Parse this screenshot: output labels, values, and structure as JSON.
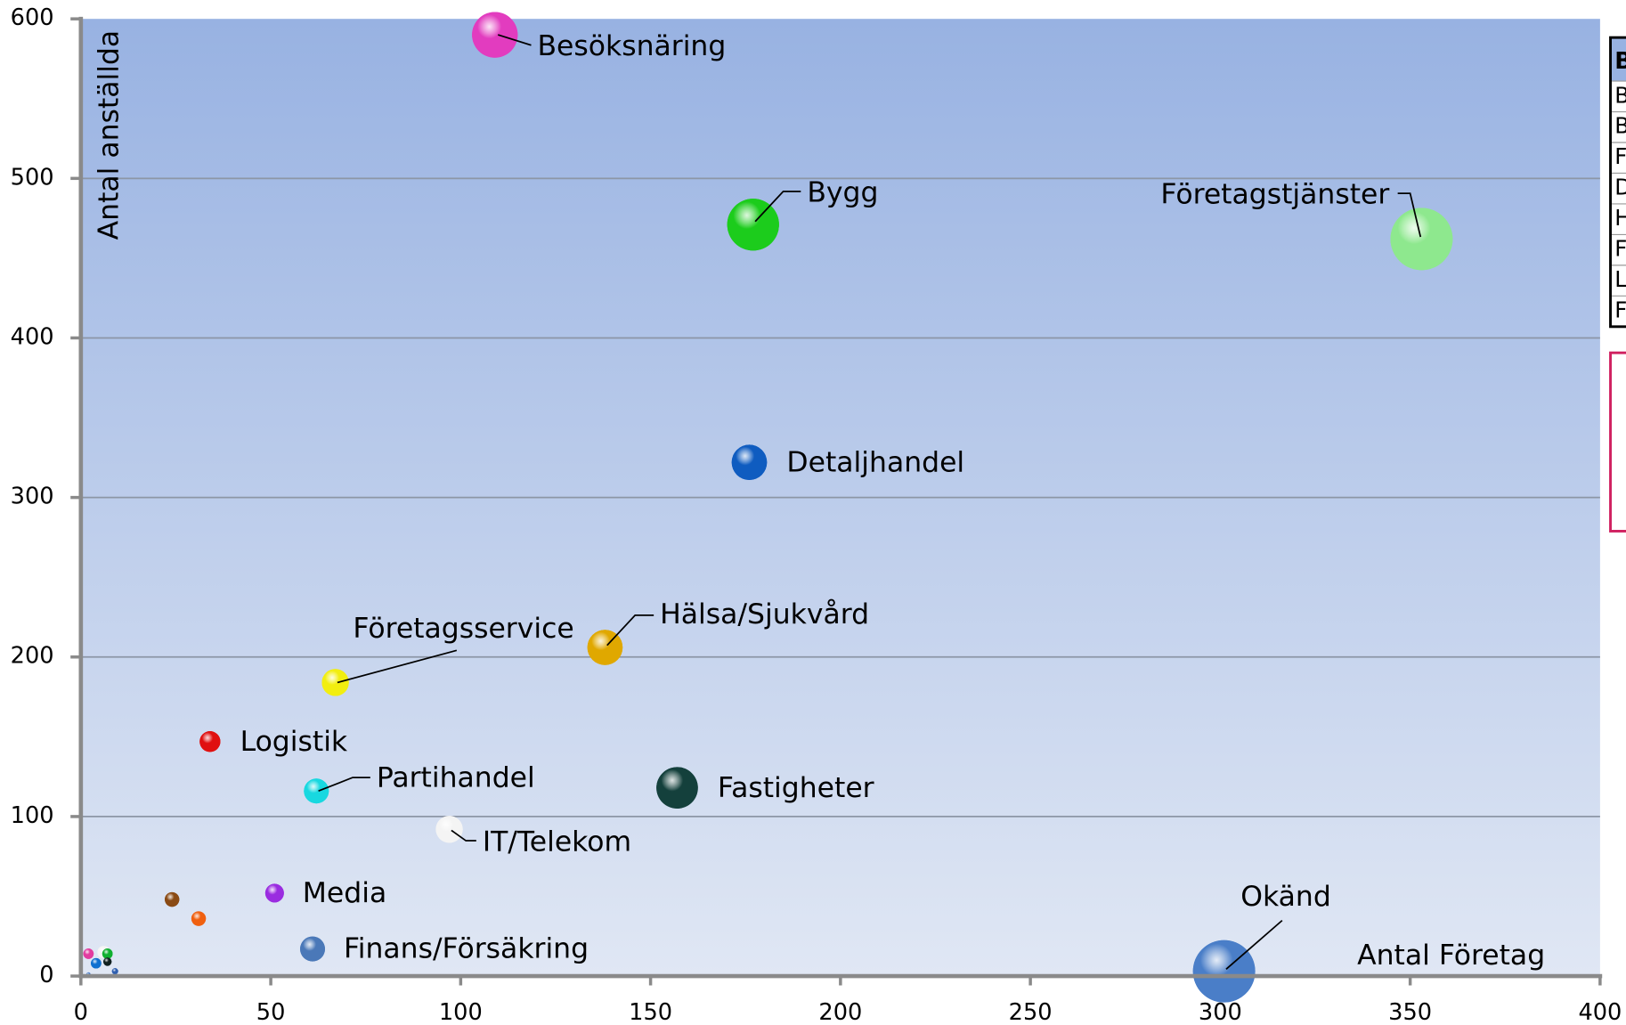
{
  "chart_data": {
    "type": "bubble",
    "x_label": "Antal Företag",
    "y_label": "Antal anställda",
    "xlim": [
      0,
      400
    ],
    "xticks": [
      0,
      50,
      100,
      150,
      200,
      250,
      300,
      350,
      400
    ],
    "ylim": [
      0,
      600
    ],
    "yticks": [
      0,
      100,
      200,
      300,
      400,
      500,
      600
    ],
    "grid": true,
    "points": [
      {
        "name": "Besöksnäring",
        "x": 109,
        "y": 590,
        "size": 484,
        "color": "#e23cbf"
      },
      {
        "name": "Bygg",
        "x": 177,
        "y": 471,
        "size": 625,
        "color": "#1ccc1c"
      },
      {
        "name": "Företagstjänster",
        "x": 353,
        "y": 462,
        "size": 900,
        "color": "#8ee88e"
      },
      {
        "name": "Detaljhandel",
        "x": 176,
        "y": 322,
        "size": 289,
        "color": "#0f5cc0"
      },
      {
        "name": "Hälsa/Sjukvård",
        "x": 138,
        "y": 206,
        "size": 289,
        "color": "#e0a800"
      },
      {
        "name": "Företagsservice",
        "x": 67,
        "y": 184,
        "size": 169,
        "color": "#f2ee10"
      },
      {
        "name": "Logistik",
        "x": 34,
        "y": 147,
        "size": 100,
        "color": "#e01010"
      },
      {
        "name": "Partihandel",
        "x": 62,
        "y": 116,
        "size": 144,
        "color": "#18d8e0"
      },
      {
        "name": "Fastigheter",
        "x": 157,
        "y": 118,
        "size": 400,
        "color": "#14403c"
      },
      {
        "name": "IT/Telekom",
        "x": 97,
        "y": 92,
        "size": 169,
        "color": "#f4f4f4"
      },
      {
        "name": "Media",
        "x": 51,
        "y": 52,
        "size": 81,
        "color": "#9a2ce0"
      },
      {
        "name": "Finans/Försäkring",
        "x": 61,
        "y": 17,
        "size": 144,
        "color": "#4a78b8"
      },
      {
        "name": "Okänd",
        "x": 301,
        "y": 3,
        "size": 900,
        "color": "#4a7ec8"
      },
      {
        "name": null,
        "x": 24,
        "y": 48,
        "size": 49,
        "color": "#8a4a14"
      },
      {
        "name": null,
        "x": 31,
        "y": 36,
        "size": 49,
        "color": "#f06010"
      },
      {
        "name": null,
        "x": 2,
        "y": 14,
        "size": 25,
        "color": "#e23c9f"
      },
      {
        "name": null,
        "x": 4,
        "y": 8,
        "size": 25,
        "color": "#1070d0"
      },
      {
        "name": null,
        "x": 6,
        "y": 15,
        "size": 36,
        "color": "#f4f4f4"
      },
      {
        "name": null,
        "x": 7,
        "y": 14,
        "size": 25,
        "color": "#10b030"
      },
      {
        "name": null,
        "x": 7,
        "y": 9,
        "size": 16,
        "color": "#102020"
      },
      {
        "name": null,
        "x": 9,
        "y": 3,
        "size": 9,
        "color": "#3060b0"
      },
      {
        "name": null,
        "x": 2,
        "y": 1,
        "size": 4,
        "color": "#4a7ec8"
      }
    ],
    "side_table": {
      "header": "B",
      "rows": [
        "B",
        "B",
        "F",
        "D",
        "H",
        "F",
        "L",
        "F"
      ]
    }
  }
}
